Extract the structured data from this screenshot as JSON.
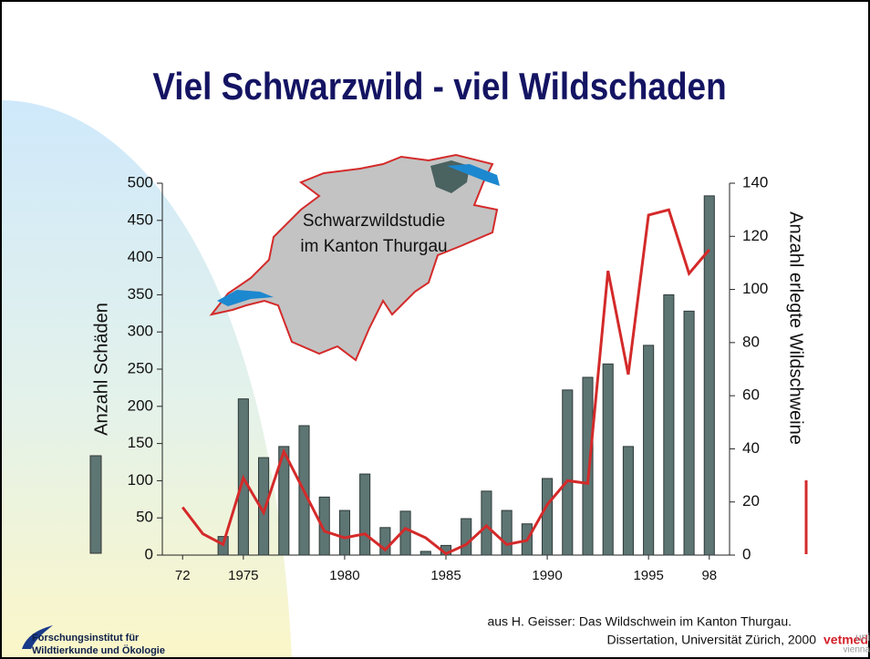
{
  "chart_data": {
    "type": "bar",
    "title": "Viel Schwarzwild - viel Wildschaden",
    "y_label": "Anzahl Schäden",
    "y2_label": "Anzahl erlegte Wildschweine",
    "annotation": [
      "Schwarzwildstudie",
      "im Kanton Thurgau"
    ],
    "x": [
      1972,
      1973,
      1974,
      1975,
      1976,
      1977,
      1978,
      1979,
      1980,
      1981,
      1982,
      1983,
      1984,
      1985,
      1986,
      1987,
      1988,
      1989,
      1990,
      1991,
      1992,
      1993,
      1994,
      1995,
      1996,
      1997,
      1998
    ],
    "xlim": [
      1971,
      1999
    ],
    "xticks": [
      {
        "value": 1972,
        "label": "72"
      },
      1975,
      1980,
      1985,
      1990,
      1995,
      {
        "value": 1998,
        "label": "98"
      }
    ],
    "ylim": [
      0,
      500
    ],
    "yticks": [
      0,
      50,
      100,
      150,
      200,
      250,
      300,
      350,
      400,
      450,
      500
    ],
    "y2lim": [
      0,
      140
    ],
    "y2ticks": [
      0,
      20,
      40,
      60,
      80,
      100,
      120,
      140
    ],
    "series": [
      {
        "type": "bar",
        "color": "#5d7573",
        "values": [
          null,
          null,
          25,
          210,
          131,
          146,
          174,
          78,
          60,
          109,
          37,
          59,
          5,
          13,
          49,
          86,
          60,
          42,
          103,
          222,
          239,
          257,
          146,
          282,
          350,
          328,
          483
        ]
      },
      {
        "type": "line",
        "axis": "y2",
        "color": "#d42a2a",
        "values": [
          18,
          8,
          4,
          29,
          16,
          39,
          24,
          9,
          6.5,
          8,
          2,
          10,
          6.5,
          0.5,
          4,
          11,
          4,
          5.5,
          19,
          28,
          27,
          107,
          68,
          128,
          130,
          106,
          115
        ]
      }
    ]
  },
  "footer": {
    "source": [
      "aus H. Geisser: Das Wildschwein im Kanton Thurgau.",
      "Dissertation, Universität Zürich, 2000"
    ],
    "institute": [
      "Forschungsinstitut für",
      "Wildtierkunde und Ökologie"
    ],
    "logo": [
      "vetmed",
      "uni",
      "vienna"
    ]
  }
}
